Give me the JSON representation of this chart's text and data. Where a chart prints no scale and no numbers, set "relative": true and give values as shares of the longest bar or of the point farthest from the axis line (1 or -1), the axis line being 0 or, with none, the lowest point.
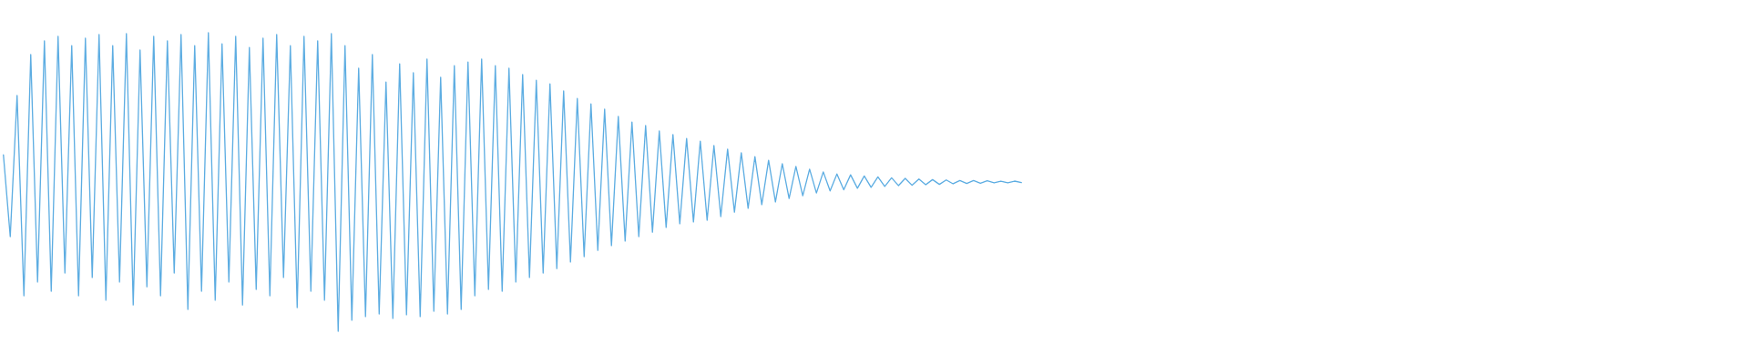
{
  "chart_data": {
    "type": "line",
    "relative": true,
    "color": "#5dade2",
    "categories": [
      null,
      null,
      null,
      null,
      null,
      null,
      null,
      null,
      null,
      null,
      null,
      null,
      null,
      null,
      null,
      null,
      null,
      null,
      null,
      null,
      null,
      null,
      null,
      null,
      null,
      null,
      null,
      null,
      null,
      null,
      null,
      null,
      null,
      null,
      null,
      null,
      null,
      null,
      null,
      null,
      null,
      null,
      null,
      null,
      null,
      null,
      null,
      null,
      null,
      null,
      null,
      null,
      null,
      null,
      null,
      null,
      null,
      null,
      null,
      null,
      null,
      null,
      null,
      null,
      null,
      null,
      null,
      null,
      null,
      null,
      null,
      null,
      null,
      null,
      null,
      null,
      null,
      null,
      null,
      null,
      null,
      null,
      null,
      null,
      null,
      null,
      null,
      null,
      null,
      null,
      null,
      null,
      null,
      null,
      null,
      null,
      null,
      null,
      null,
      null,
      null,
      null,
      null,
      null,
      null,
      null,
      null,
      null,
      null,
      null,
      null,
      null,
      null,
      null,
      null,
      null,
      null,
      null,
      null,
      null,
      null,
      null,
      null,
      null,
      null,
      null,
      null,
      null,
      null,
      null,
      null,
      null,
      null,
      null,
      null,
      null,
      null,
      null,
      null,
      null,
      null,
      null,
      null,
      null,
      null,
      null,
      null,
      null,
      null,
      null,
      null,
      null,
      null,
      null,
      null,
      null,
      null,
      null,
      null,
      null,
      null,
      null,
      null,
      null,
      null,
      null,
      null,
      null,
      null,
      null,
      null,
      null,
      null,
      null,
      null,
      null,
      null,
      null,
      null,
      null,
      null,
      null,
      null,
      null,
      null,
      null,
      null,
      null,
      null,
      null,
      null,
      null,
      null,
      null,
      null,
      null,
      null,
      null,
      null,
      null,
      null,
      null,
      null,
      null,
      null,
      null,
      null,
      null,
      null,
      null,
      null,
      null,
      null,
      null,
      null,
      null,
      null,
      null,
      null,
      null,
      null,
      null,
      null,
      null,
      null,
      null,
      null,
      null,
      null,
      null,
      null,
      null,
      null,
      null,
      null,
      null,
      null,
      null,
      null,
      null,
      null,
      null,
      null,
      null,
      null,
      null,
      null,
      null,
      null,
      null,
      null,
      null,
      null,
      null,
      null,
      null
    ],
    "values": [
      0.591,
      0.317,
      0.79,
      0.119,
      0.927,
      0.165,
      0.973,
      0.134,
      0.988,
      0.195,
      0.957,
      0.119,
      0.982,
      0.18,
      0.994,
      0.104,
      0.957,
      0.165,
      0.997,
      0.088,
      0.942,
      0.149,
      0.988,
      0.119,
      0.973,
      0.195,
      0.994,
      0.073,
      0.957,
      0.134,
      1.0,
      0.104,
      0.963,
      0.165,
      0.988,
      0.088,
      0.951,
      0.14,
      0.982,
      0.119,
      0.994,
      0.18,
      0.957,
      0.079,
      0.988,
      0.134,
      0.973,
      0.104,
      0.997,
      0.0,
      0.957,
      0.037,
      0.881,
      0.049,
      0.927,
      0.058,
      0.835,
      0.043,
      0.896,
      0.055,
      0.866,
      0.049,
      0.912,
      0.067,
      0.851,
      0.058,
      0.89,
      0.073,
      0.902,
      0.119,
      0.912,
      0.14,
      0.89,
      0.134,
      0.881,
      0.165,
      0.86,
      0.18,
      0.841,
      0.195,
      0.829,
      0.21,
      0.805,
      0.232,
      0.78,
      0.25,
      0.762,
      0.271,
      0.744,
      0.287,
      0.72,
      0.302,
      0.701,
      0.317,
      0.689,
      0.332,
      0.671,
      0.348,
      0.659,
      0.36,
      0.646,
      0.366,
      0.637,
      0.372,
      0.622,
      0.384,
      0.61,
      0.399,
      0.598,
      0.412,
      0.585,
      0.424,
      0.573,
      0.433,
      0.561,
      0.445,
      0.552,
      0.454,
      0.543,
      0.463,
      0.534,
      0.47,
      0.527,
      0.474,
      0.524,
      0.479,
      0.52,
      0.482,
      0.517,
      0.485,
      0.514,
      0.488,
      0.512,
      0.489,
      0.51,
      0.491,
      0.508,
      0.492,
      0.507,
      0.494,
      0.505,
      0.495,
      0.505,
      0.496,
      0.504,
      0.497,
      0.503,
      0.497,
      0.503,
      0.498,
      null,
      null,
      null,
      null,
      null,
      null,
      null,
      null,
      null,
      null,
      null,
      null,
      null,
      null,
      null,
      null,
      null,
      null,
      null,
      null,
      null,
      null,
      null,
      null,
      null,
      null,
      null,
      null,
      null,
      null,
      null,
      null,
      null,
      null,
      null,
      null,
      null,
      null,
      null,
      null,
      null,
      null,
      null,
      null,
      null,
      null,
      null,
      null,
      null,
      null,
      null,
      null,
      null,
      null,
      null,
      null,
      null,
      null,
      null,
      null,
      null,
      null,
      null,
      null,
      null,
      null,
      null,
      null,
      null,
      null,
      null,
      null,
      null,
      null,
      null,
      null,
      null,
      null,
      null,
      null,
      null,
      null,
      null,
      null,
      null,
      null,
      null,
      null,
      null,
      null,
      null,
      null,
      null,
      null,
      null,
      null,
      null,
      null,
      null,
      null,
      null,
      null,
      null,
      null,
      null,
      null
    ]
  }
}
